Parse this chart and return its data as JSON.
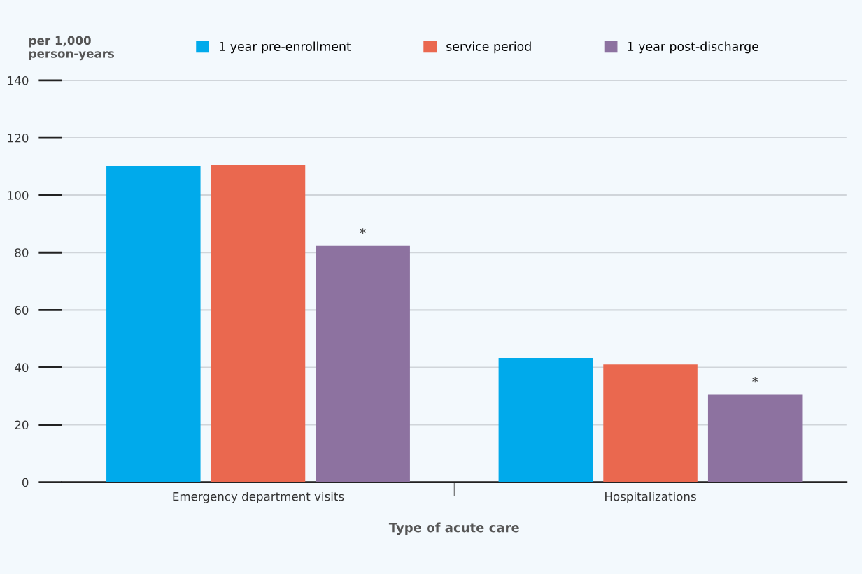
{
  "chart_data": {
    "type": "bar",
    "ylabel": "per 1,000\nperson-years",
    "xlabel": "Type of acute care",
    "categories": [
      "Emergency department visits",
      "Hospitalizations"
    ],
    "series": [
      {
        "name": "1 year pre-enrollment",
        "color": "#00aaeb",
        "values": [
          110,
          43.3
        ]
      },
      {
        "name": "service period",
        "color": "#ea684f",
        "values": [
          110.5,
          41
        ]
      },
      {
        "name": "1 year post-discharge",
        "color": "#8d72a0",
        "values": [
          82.3,
          30.5
        ]
      }
    ],
    "annotations": [
      "*",
      "*"
    ],
    "ylim": [
      0,
      140
    ],
    "yticks": [
      0,
      20,
      40,
      60,
      80,
      100,
      120,
      140
    ],
    "grid": "y",
    "legend": "top"
  }
}
